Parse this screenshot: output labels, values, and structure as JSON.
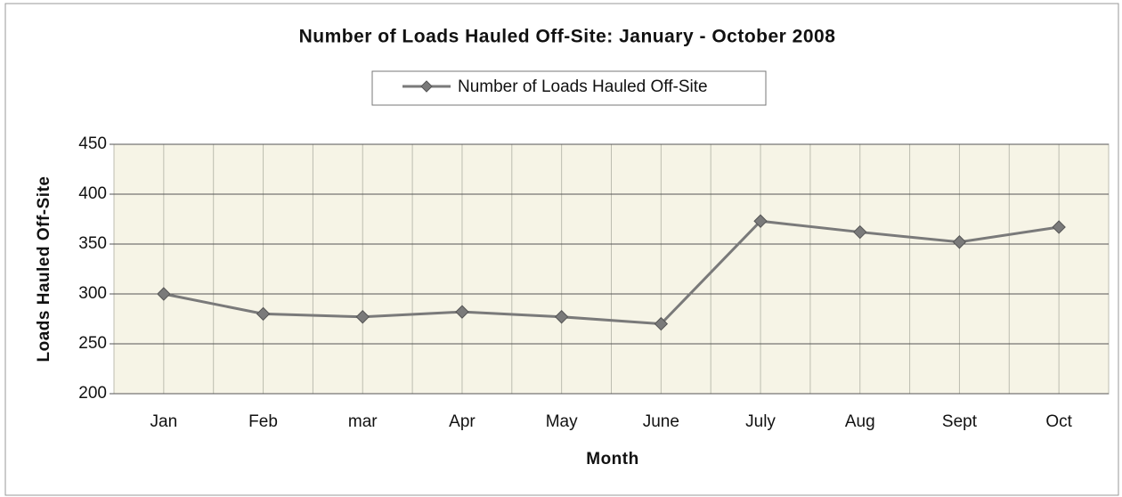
{
  "chart_data": {
    "type": "line",
    "title": "Number of Loads Hauled Off-Site:  January - October 2008",
    "x_label": "Month",
    "y_label": "Loads Hauled Off-Site",
    "categories": [
      "Jan",
      "Feb",
      "mar",
      "Apr",
      "May",
      "June",
      "July",
      "Aug",
      "Sept",
      "Oct"
    ],
    "series": [
      {
        "name": "Number of Loads Hauled Off-Site",
        "color": "#7a7a7a",
        "values": [
          300,
          280,
          277,
          282,
          277,
          270,
          373,
          362,
          352,
          367
        ]
      }
    ],
    "ylim": [
      200,
      450
    ],
    "yticks": [
      200,
      250,
      300,
      350,
      400,
      450
    ],
    "grid": true,
    "legend": "top"
  }
}
